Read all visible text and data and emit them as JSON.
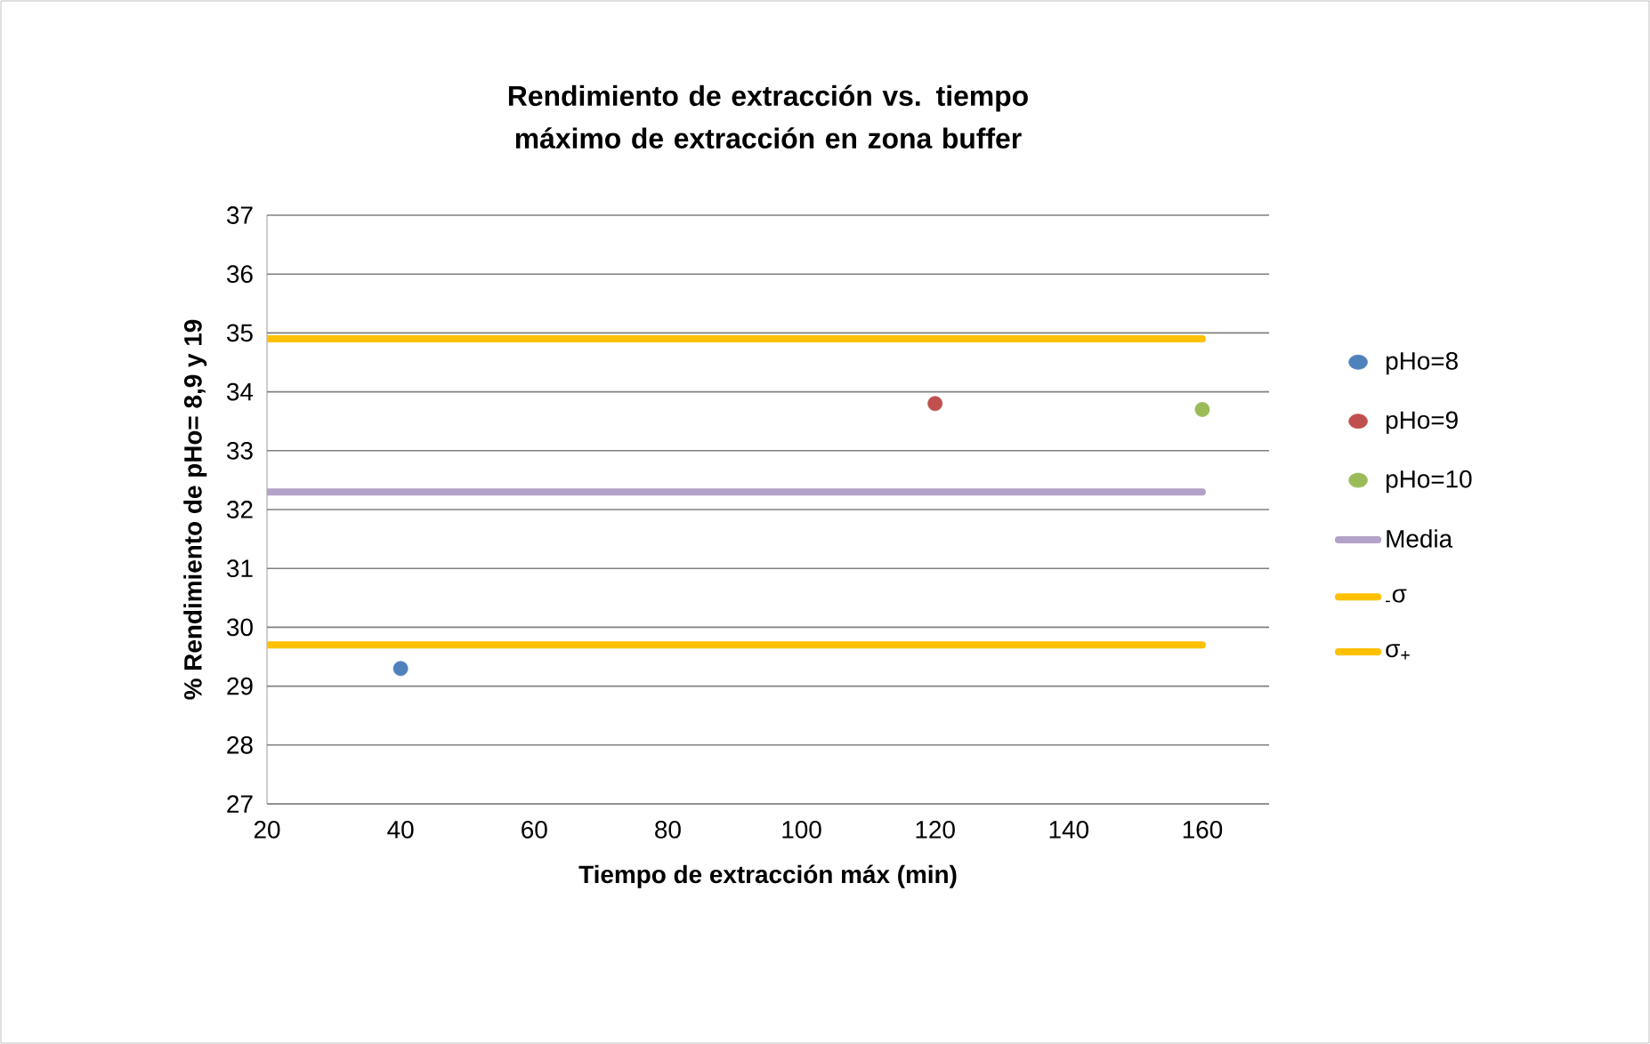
{
  "chart_data": {
    "type": "scatter",
    "title": "Rendimiento de extracción vs. tiempo máximo de extracción en zona buffer",
    "xlabel": "Tiempo de extracción máx (min)",
    "ylabel": "% Rendimiento de pHo= 8,9 y 19",
    "xlim": [
      20,
      170
    ],
    "xticks": [
      20,
      40,
      60,
      80,
      100,
      120,
      140,
      160
    ],
    "ylim": [
      27,
      37
    ],
    "yticks": [
      27,
      28,
      29,
      30,
      31,
      32,
      33,
      34,
      35,
      36,
      37
    ],
    "grid": "y",
    "legend": "right",
    "series": [
      {
        "name": "pHo=8",
        "marker": "circle",
        "color": "#4f81bd",
        "x": [
          40
        ],
        "values": [
          29.3
        ]
      },
      {
        "name": "pHo=9",
        "marker": "circle",
        "color": "#c0504d",
        "x": [
          120
        ],
        "values": [
          33.8
        ]
      },
      {
        "name": "pHo=10",
        "marker": "circle",
        "color": "#9bbb59",
        "x": [
          160
        ],
        "values": [
          33.7
        ]
      },
      {
        "name": "Media",
        "type": "line",
        "marker": "none",
        "line_style": "solid",
        "color": "#b3a2c7",
        "x": [
          20,
          160
        ],
        "values": [
          32.3,
          32.3
        ]
      },
      {
        "name": "$_{-}$σ",
        "type": "line",
        "marker": "none",
        "line_style": "solid",
        "color": "#ffc000",
        "x": [
          20,
          160
        ],
        "values": [
          29.7,
          29.7
        ]
      },
      {
        "name": "σ$_{+}$",
        "type": "line",
        "marker": "none",
        "line_style": "solid",
        "color": "#ffc000",
        "x": [
          20,
          160
        ],
        "values": [
          34.9,
          34.9
        ]
      }
    ]
  }
}
